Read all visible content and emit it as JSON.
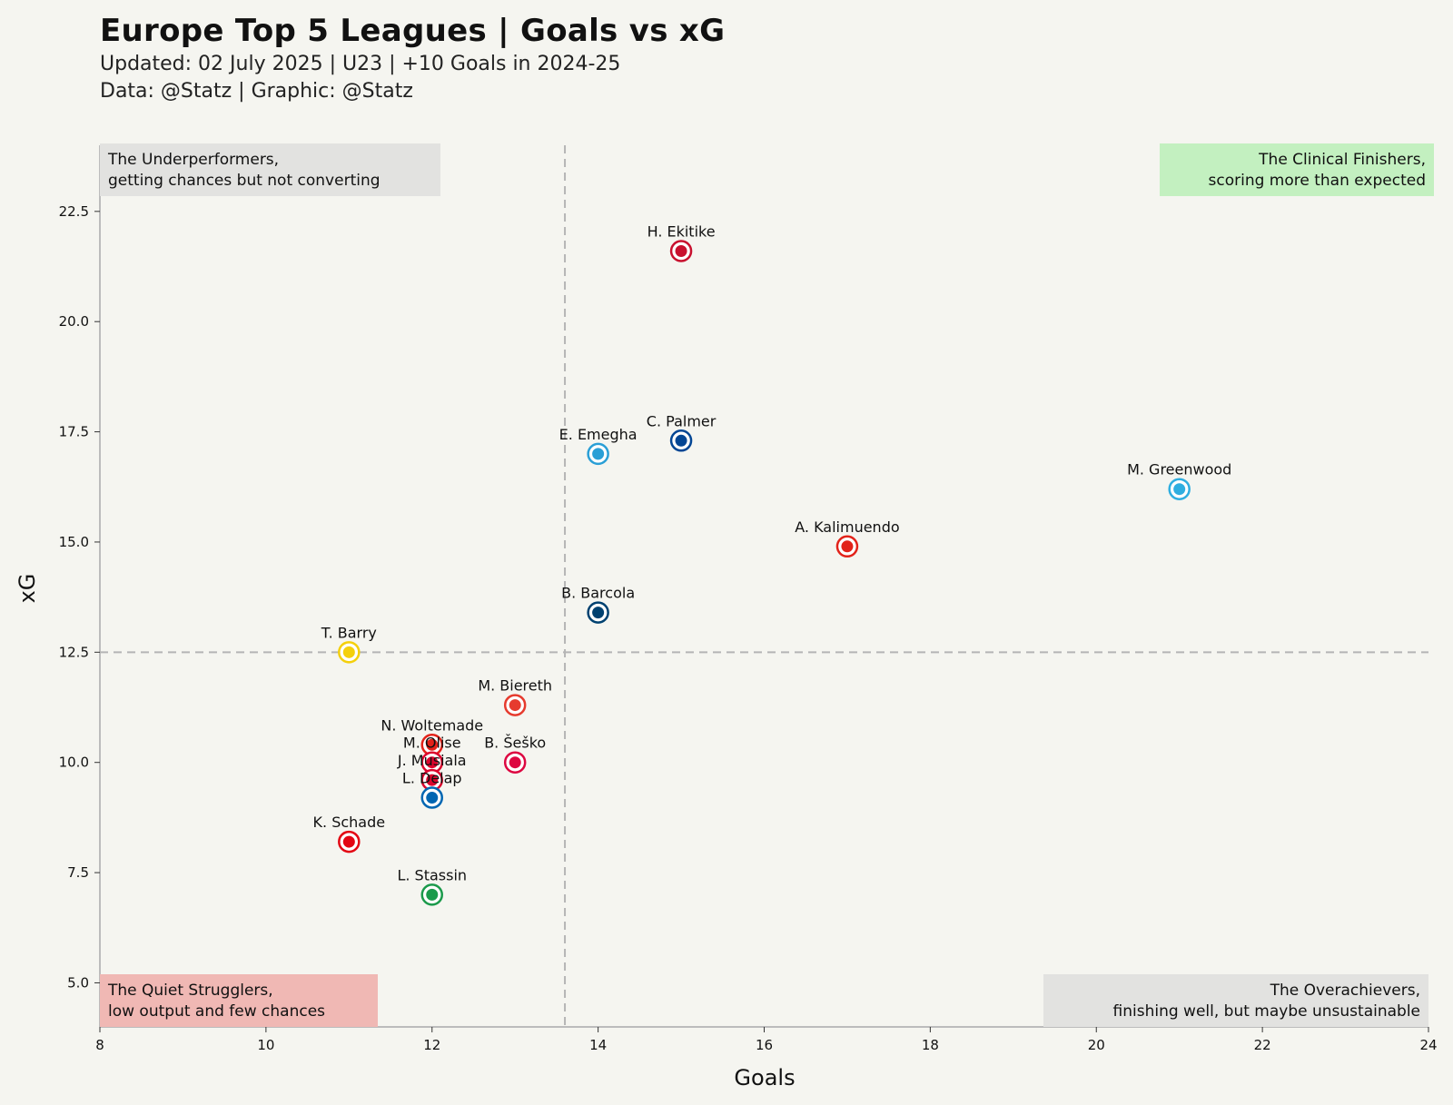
{
  "title": "Europe Top 5 Leagues | Goals vs xG",
  "subtitle_line1": "Updated: 02 July 2025 | U23 | +10 Goals in 2024-25",
  "subtitle_line2": "Data: @Statz | Graphic: @Statz",
  "chart_data": {
    "type": "scatter",
    "xlabel": "Goals",
    "ylabel": "xG",
    "xlim": [
      8,
      24
    ],
    "ylim": [
      4,
      24
    ],
    "xticks": [
      8,
      10,
      12,
      14,
      16,
      18,
      20,
      22,
      24
    ],
    "yticks": [
      "5.0",
      "7.5",
      "10.0",
      "12.5",
      "15.0",
      "17.5",
      "20.0",
      "22.5"
    ],
    "ytick_values": [
      5.0,
      7.5,
      10.0,
      12.5,
      15.0,
      17.5,
      20.0,
      22.5
    ],
    "reference_lines": {
      "x": 13.6,
      "y": 12.5
    },
    "grid": false,
    "points": [
      {
        "name": "H. Ekitike",
        "x": 15,
        "y": 21.6,
        "color": "#c8102e"
      },
      {
        "name": "C. Palmer",
        "x": 15,
        "y": 17.3,
        "color": "#034694"
      },
      {
        "name": "E. Emegha",
        "x": 14,
        "y": 17.0,
        "color": "#2a9fd6"
      },
      {
        "name": "M. Greenwood",
        "x": 21,
        "y": 16.2,
        "color": "#2faee0"
      },
      {
        "name": "A. Kalimuendo",
        "x": 17,
        "y": 14.9,
        "color": "#e2231a"
      },
      {
        "name": "B. Barcola",
        "x": 14,
        "y": 13.4,
        "color": "#004170"
      },
      {
        "name": "T. Barry",
        "x": 11,
        "y": 12.5,
        "color": "#f4d00c"
      },
      {
        "name": "M. Biereth",
        "x": 13,
        "y": 11.3,
        "color": "#e63b2e"
      },
      {
        "name": "N. Woltemade",
        "x": 12,
        "y": 10.4,
        "color": "#e32219"
      },
      {
        "name": "B. Šeško",
        "x": 13,
        "y": 10.0,
        "color": "#dd0741"
      },
      {
        "name": "M. Olise",
        "x": 12,
        "y": 10.0,
        "color": "#dc052d"
      },
      {
        "name": "J. Musiala",
        "x": 12,
        "y": 9.6,
        "color": "#dc052d"
      },
      {
        "name": "L. Delap",
        "x": 12,
        "y": 9.2,
        "color": "#0066b2"
      },
      {
        "name": "K. Schade",
        "x": 11,
        "y": 8.2,
        "color": "#e30613"
      },
      {
        "name": "L. Stassin",
        "x": 12,
        "y": 7.0,
        "color": "#1b9a4b"
      }
    ],
    "quadrants": {
      "top_left": {
        "line1": "The Underperformers,",
        "line2": "getting chances but not converting",
        "color": "#e2e2e0"
      },
      "top_right": {
        "line1": "The Clinical Finishers,",
        "line2": "scoring more than expected",
        "color": "#c3f0c0"
      },
      "bottom_left": {
        "line1": "The Quiet Strugglers,",
        "line2": "low output and few chances",
        "color": "#f0b8b4"
      },
      "bottom_right": {
        "line1": "The Overachievers,",
        "line2": "finishing well, but maybe unsustainable",
        "color": "#e2e2e0"
      }
    }
  }
}
